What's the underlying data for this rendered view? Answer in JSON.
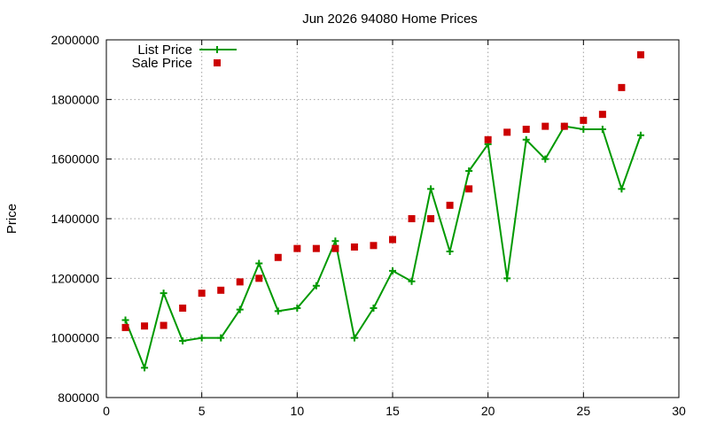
{
  "chart_data": {
    "type": "line",
    "title": "Jun 2026 94080 Home Prices",
    "xlabel": "",
    "ylabel": "Price",
    "xlim": [
      0,
      30
    ],
    "ylim": [
      800000,
      2000000
    ],
    "x_ticks": [
      0,
      5,
      10,
      15,
      20,
      25,
      30
    ],
    "y_ticks": [
      800000,
      1000000,
      1200000,
      1400000,
      1600000,
      1800000,
      2000000
    ],
    "grid": true,
    "legend_position": "top-left",
    "series": [
      {
        "name": "List Price",
        "style": "line-with-plus-markers",
        "color": "#009900",
        "x": [
          1,
          2,
          3,
          4,
          5,
          6,
          7,
          8,
          9,
          10,
          11,
          12,
          13,
          14,
          15,
          16,
          17,
          18,
          19,
          20,
          21,
          22,
          23,
          24,
          25,
          26,
          27,
          28
        ],
        "values": [
          1060000,
          900000,
          1150000,
          990000,
          1000000,
          1000000,
          1095000,
          1250000,
          1090000,
          1100000,
          1175000,
          1325000,
          1000000,
          1100000,
          1225000,
          1190000,
          1500000,
          1290000,
          1560000,
          1650000,
          1200000,
          1665000,
          1600000,
          1710000,
          1700000,
          1700000,
          1500000,
          1680000
        ]
      },
      {
        "name": "Sale Price",
        "style": "square-points",
        "color": "#cc0000",
        "x": [
          1,
          2,
          3,
          4,
          5,
          6,
          7,
          8,
          9,
          10,
          11,
          12,
          13,
          14,
          15,
          16,
          17,
          18,
          19,
          20,
          21,
          22,
          23,
          24,
          25,
          26,
          27,
          28
        ],
        "values": [
          1035000,
          1040000,
          1042000,
          1100000,
          1150000,
          1160000,
          1188000,
          1200000,
          1270000,
          1300000,
          1300000,
          1300000,
          1305000,
          1310000,
          1330000,
          1400000,
          1400000,
          1445000,
          1500000,
          1665000,
          1690000,
          1700000,
          1710000,
          1710000,
          1730000,
          1750000,
          1840000,
          1950000
        ]
      }
    ]
  }
}
